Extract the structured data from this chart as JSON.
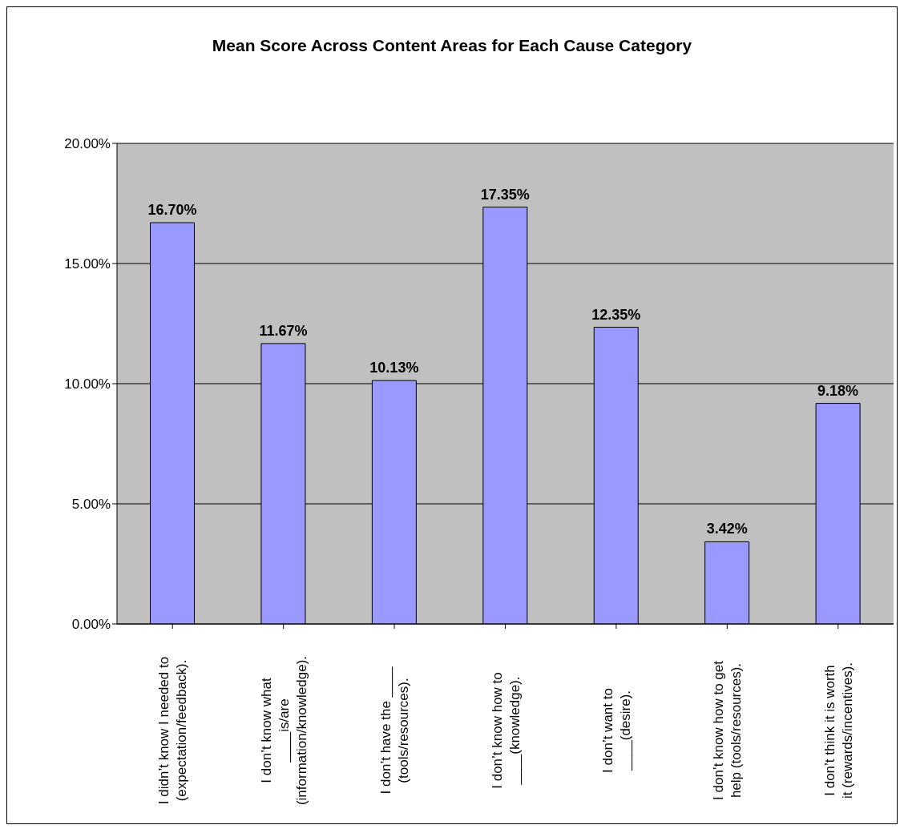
{
  "chart_data": {
    "type": "bar",
    "title": "Mean Score Across Content Areas for Each Cause Category",
    "categories": [
      "I didn’t know I needed to (expectation/feedback).",
      "I don’t know what ____is/are (information/knowledge).",
      "I don’t have the ____ (tools/resources).",
      "I don’t know how to ____(knowledge).",
      "I don’t want to ____(desire).",
      "I don’t know how to get help (tools/resources).",
      "I don’t think it is worth it (rewards/incentives)."
    ],
    "values": [
      16.7,
      11.67,
      10.13,
      17.35,
      12.35,
      3.42,
      9.18
    ],
    "value_labels": [
      "16.70%",
      "11.67%",
      "10.13%",
      "17.35%",
      "12.35%",
      "3.42%",
      "9.18%"
    ],
    "color": "#9999ff",
    "ylim": [
      0,
      20
    ],
    "yticks": [
      {
        "value": 0,
        "label": "0.00%"
      },
      {
        "value": 5,
        "label": "5.00%"
      },
      {
        "value": 10,
        "label": "10.00%"
      },
      {
        "value": 15,
        "label": "15.00%"
      },
      {
        "value": 20,
        "label": "20.00%"
      }
    ],
    "grid": "y"
  }
}
